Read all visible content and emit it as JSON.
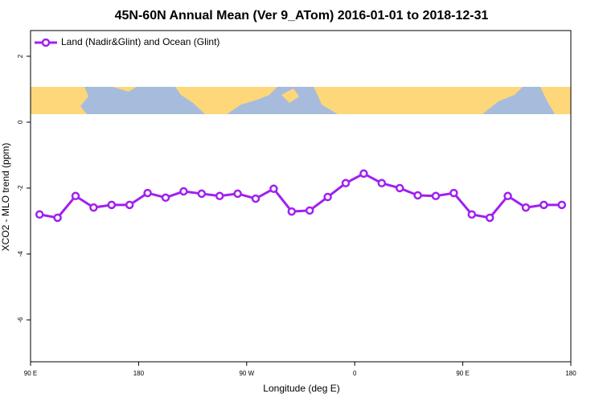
{
  "chart_data": {
    "type": "line",
    "title": "45N-60N Annual Mean (Ver 9_ATom)   2016-01-01 to 2018-12-31",
    "x_label": "Longitude (deg E)",
    "y_label": "XCO2 - MLO trend (ppm)",
    "x": [
      97.5,
      112.5,
      127.5,
      142.5,
      157.5,
      172.5,
      187.5,
      202.5,
      217.5,
      232.5,
      247.5,
      262.5,
      277.5,
      292.5,
      307.5,
      322.5,
      337.5,
      352.5,
      367.5,
      382.5,
      397.5,
      412.5,
      427.5,
      442.5,
      457.5,
      472.5,
      487.5,
      502.5,
      517.5,
      532.5
    ],
    "series": [
      {
        "name": "Land (Nadir&Glint) and Ocean (Glint)",
        "color": "#a020f0",
        "values": [
          -2.8,
          -2.9,
          -2.24,
          -2.59,
          -2.51,
          -2.51,
          -2.15,
          -2.29,
          -2.1,
          -2.17,
          -2.24,
          -2.17,
          -2.32,
          -2.02,
          -2.71,
          -2.68,
          -2.27,
          -1.85,
          -1.56,
          -1.85,
          -2.0,
          -2.22,
          -2.24,
          -2.15,
          -2.8,
          -2.9,
          -2.24,
          -2.59,
          -2.51,
          -2.51
        ]
      }
    ],
    "xlim": [
      90,
      540
    ],
    "xticks": [
      {
        "value": 90,
        "label": "90 E"
      },
      180,
      {
        "value": 270,
        "label": "90 W"
      },
      {
        "value": 360,
        "label": "0"
      },
      {
        "value": 450,
        "label": "90 E"
      },
      {
        "value": 540,
        "label": "180"
      }
    ],
    "ylim": [
      -7.27,
      2.78
    ],
    "yticks": [
      2,
      0,
      -2,
      -4,
      -6
    ],
    "legend": "top-left"
  }
}
